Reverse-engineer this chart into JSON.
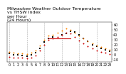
{
  "title": "Milwaukee Weather Outdoor Temperature\nvs THSW Index\nper Hour\n(24 Hours)",
  "xlim": [
    -0.5,
    23.5
  ],
  "ylim": [
    -15,
    65
  ],
  "yticks": [
    -10,
    0,
    10,
    20,
    30,
    40,
    50,
    60
  ],
  "ytick_labels": [
    "-10",
    "0",
    "10",
    "20",
    "30",
    "40",
    "50",
    "60"
  ],
  "xticks": [
    0,
    1,
    2,
    3,
    4,
    5,
    6,
    7,
    8,
    9,
    10,
    11,
    12,
    13,
    14,
    15,
    16,
    17,
    18,
    19,
    20,
    21,
    22,
    23
  ],
  "xtick_labels": [
    "0",
    "1",
    "2",
    "3",
    "4",
    "5",
    "6",
    "7",
    "8",
    "9",
    "10",
    "11",
    "12",
    "13",
    "14",
    "15",
    "16",
    "17",
    "18",
    "19",
    "20",
    "21",
    "22",
    "23"
  ],
  "bg_color": "#ffffff",
  "temp_color": "#ff8800",
  "thsw_color": "#cc0000",
  "black_color": "#000000",
  "temp_x": [
    0,
    1,
    2,
    3,
    4,
    5,
    6,
    7,
    8,
    9,
    10,
    11,
    12,
    13,
    14,
    15,
    16,
    17,
    18,
    19,
    20,
    21,
    22,
    23
  ],
  "temp_y": [
    5,
    3,
    2,
    2,
    1,
    3,
    8,
    18,
    30,
    38,
    40,
    44,
    48,
    52,
    50,
    44,
    38,
    32,
    26,
    22,
    18,
    15,
    12,
    10
  ],
  "thsw_x": [
    0,
    1,
    2,
    3,
    4,
    5,
    6,
    7,
    8,
    9,
    10,
    11,
    12,
    13,
    14,
    15,
    16,
    17,
    18,
    19,
    20,
    21,
    22,
    23
  ],
  "thsw_y": [
    -5,
    -6,
    -7,
    -7,
    -8,
    -6,
    -2,
    8,
    20,
    30,
    33,
    36,
    40,
    44,
    42,
    36,
    28,
    22,
    16,
    12,
    8,
    5,
    3,
    1
  ],
  "black_x": [
    0,
    1,
    2,
    3,
    4,
    5,
    6,
    7,
    8,
    9,
    10,
    12,
    13,
    14,
    15,
    16,
    17,
    18,
    19,
    20,
    21,
    22,
    23
  ],
  "black_y": [
    2,
    0,
    -1,
    -2,
    -3,
    -1,
    3,
    12,
    25,
    33,
    36,
    39,
    43,
    47,
    45,
    39,
    32,
    26,
    20,
    16,
    12,
    9,
    7
  ],
  "grid_color": "#aaaaaa",
  "grid_positions": [
    0,
    4,
    8,
    12,
    16,
    20
  ],
  "title_fontsize": 4.5,
  "tick_fontsize": 3.5,
  "dot_size": 2,
  "black_dot_size": 2,
  "line_x_start": 9,
  "line_x_end": 14,
  "line_y": 33,
  "ylabel_right": true
}
